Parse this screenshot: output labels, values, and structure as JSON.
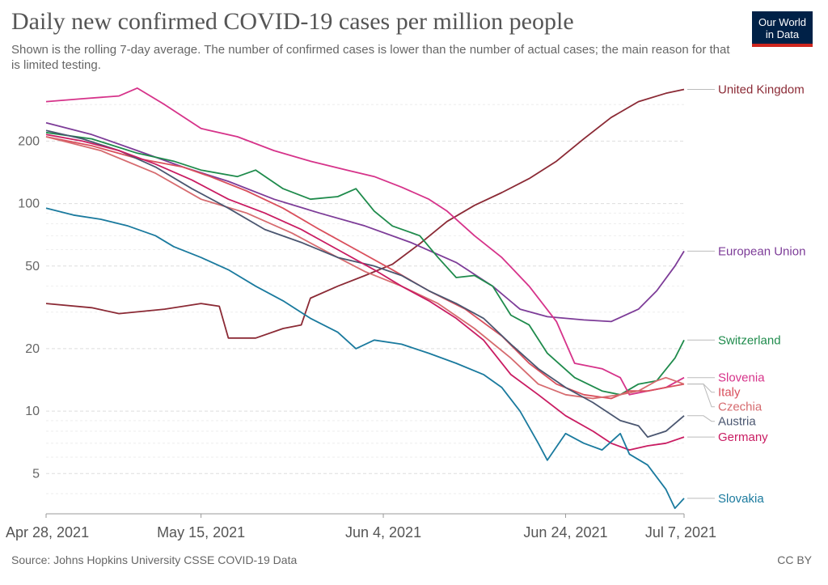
{
  "header": {
    "title": "Daily new confirmed COVID-19 cases per million people",
    "subtitle": "Shown is the rolling 7-day average. The number of confirmed cases is lower than the number of actual cases; the main reason for that is limited testing.",
    "logo_line1": "Our World",
    "logo_line2": "in Data"
  },
  "footer": {
    "source": "Source: Johns Hopkins University CSSE COVID-19 Data",
    "license": "CC BY"
  },
  "chart_data": {
    "type": "line",
    "title": "Daily new confirmed COVID-19 cases per million people",
    "yscale": "log",
    "ylim": [
      3.2,
      390
    ],
    "yticks": [
      5,
      10,
      20,
      50,
      100,
      200
    ],
    "ytick_labels": [
      "5",
      "10",
      "20",
      "50",
      "100",
      "200"
    ],
    "xlim": [
      "2021-04-28",
      "2021-07-07"
    ],
    "xticks": [
      "2021-04-28",
      "2021-05-15",
      "2021-06-04",
      "2021-06-24",
      "2021-07-07"
    ],
    "xtick_labels": [
      "Apr 28, 2021",
      "May 15, 2021",
      "Jun 4, 2021",
      "Jun 24, 2021",
      "Jul 7, 2021"
    ],
    "grid": true,
    "legend": "right, labels at line ends",
    "series": [
      {
        "name": "United Kingdom",
        "color": "#8b2a35",
        "points": [
          [
            "2021-04-28",
            33
          ],
          [
            "2021-05-03",
            31.5
          ],
          [
            "2021-05-06",
            29.5
          ],
          [
            "2021-05-11",
            31
          ],
          [
            "2021-05-15",
            33
          ],
          [
            "2021-05-17",
            32
          ],
          [
            "2021-05-18",
            22.5
          ],
          [
            "2021-05-21",
            22.5
          ],
          [
            "2021-05-24",
            25
          ],
          [
            "2021-05-26",
            26
          ],
          [
            "2021-05-27",
            35
          ],
          [
            "2021-05-30",
            40
          ],
          [
            "2021-06-02",
            45
          ],
          [
            "2021-06-05",
            51
          ],
          [
            "2021-06-08",
            64
          ],
          [
            "2021-06-11",
            82
          ],
          [
            "2021-06-14",
            98
          ],
          [
            "2021-06-17",
            113
          ],
          [
            "2021-06-20",
            132
          ],
          [
            "2021-06-23",
            160
          ],
          [
            "2021-06-26",
            205
          ],
          [
            "2021-06-29",
            260
          ],
          [
            "2021-07-02",
            310
          ],
          [
            "2021-07-05",
            340
          ],
          [
            "2021-07-07",
            355
          ]
        ]
      },
      {
        "name": "European Union",
        "color": "#7d3c98",
        "points": [
          [
            "2021-04-28",
            245
          ],
          [
            "2021-05-03",
            215
          ],
          [
            "2021-05-08",
            180
          ],
          [
            "2021-05-13",
            150
          ],
          [
            "2021-05-18",
            128
          ],
          [
            "2021-05-23",
            105
          ],
          [
            "2021-05-28",
            90
          ],
          [
            "2021-06-02",
            78
          ],
          [
            "2021-06-07",
            65
          ],
          [
            "2021-06-12",
            52
          ],
          [
            "2021-06-16",
            40
          ],
          [
            "2021-06-19",
            31
          ],
          [
            "2021-06-22",
            28.5
          ],
          [
            "2021-06-26",
            27.5
          ],
          [
            "2021-06-29",
            27
          ],
          [
            "2021-07-02",
            31
          ],
          [
            "2021-07-04",
            38
          ],
          [
            "2021-07-06",
            50
          ],
          [
            "2021-07-07",
            59
          ]
        ]
      },
      {
        "name": "Switzerland",
        "color": "#1f8b4c",
        "points": [
          [
            "2021-04-28",
            220
          ],
          [
            "2021-05-03",
            205
          ],
          [
            "2021-05-08",
            175
          ],
          [
            "2021-05-12",
            160
          ],
          [
            "2021-05-15",
            145
          ],
          [
            "2021-05-19",
            135
          ],
          [
            "2021-05-21",
            145
          ],
          [
            "2021-05-24",
            118
          ],
          [
            "2021-05-27",
            105
          ],
          [
            "2021-05-30",
            108
          ],
          [
            "2021-06-01",
            118
          ],
          [
            "2021-06-03",
            92
          ],
          [
            "2021-06-05",
            78
          ],
          [
            "2021-06-08",
            70
          ],
          [
            "2021-06-10",
            55
          ],
          [
            "2021-06-12",
            44
          ],
          [
            "2021-06-14",
            45
          ],
          [
            "2021-06-16",
            40
          ],
          [
            "2021-06-18",
            29
          ],
          [
            "2021-06-20",
            26
          ],
          [
            "2021-06-22",
            19
          ],
          [
            "2021-06-25",
            14.5
          ],
          [
            "2021-06-28",
            12.5
          ],
          [
            "2021-06-30",
            12
          ],
          [
            "2021-07-02",
            13.5
          ],
          [
            "2021-07-04",
            14
          ],
          [
            "2021-07-06",
            18
          ],
          [
            "2021-07-07",
            22
          ]
        ]
      },
      {
        "name": "Slovenia",
        "color": "#d6338a",
        "points": [
          [
            "2021-04-28",
            310
          ],
          [
            "2021-05-02",
            320
          ],
          [
            "2021-05-06",
            330
          ],
          [
            "2021-05-08",
            360
          ],
          [
            "2021-05-11",
            300
          ],
          [
            "2021-05-15",
            230
          ],
          [
            "2021-05-19",
            210
          ],
          [
            "2021-05-23",
            180
          ],
          [
            "2021-05-27",
            160
          ],
          [
            "2021-05-31",
            145
          ],
          [
            "2021-06-03",
            135
          ],
          [
            "2021-06-06",
            120
          ],
          [
            "2021-06-09",
            105
          ],
          [
            "2021-06-11",
            92
          ],
          [
            "2021-06-14",
            70
          ],
          [
            "2021-06-17",
            55
          ],
          [
            "2021-06-20",
            40
          ],
          [
            "2021-06-23",
            27
          ],
          [
            "2021-06-25",
            17
          ],
          [
            "2021-06-28",
            16
          ],
          [
            "2021-06-30",
            14.5
          ],
          [
            "2021-07-01",
            12
          ],
          [
            "2021-07-03",
            12.5
          ],
          [
            "2021-07-05",
            13
          ],
          [
            "2021-07-07",
            14.5
          ]
        ]
      },
      {
        "name": "Italy",
        "color": "#d94f5c",
        "points": [
          [
            "2021-04-28",
            210
          ],
          [
            "2021-05-03",
            190
          ],
          [
            "2021-05-08",
            165
          ],
          [
            "2021-05-13",
            150
          ],
          [
            "2021-05-16",
            135
          ],
          [
            "2021-05-20",
            115
          ],
          [
            "2021-05-24",
            95
          ],
          [
            "2021-05-28",
            75
          ],
          [
            "2021-06-01",
            60
          ],
          [
            "2021-06-05",
            48
          ],
          [
            "2021-06-09",
            38
          ],
          [
            "2021-06-13",
            31
          ],
          [
            "2021-06-17",
            23
          ],
          [
            "2021-06-20",
            17
          ],
          [
            "2021-06-23",
            13.5
          ],
          [
            "2021-06-26",
            12
          ],
          [
            "2021-06-29",
            11.5
          ],
          [
            "2021-07-01",
            12.5
          ],
          [
            "2021-07-03",
            12.5
          ],
          [
            "2021-07-05",
            13
          ],
          [
            "2021-07-07",
            13.5
          ]
        ]
      },
      {
        "name": "Czechia",
        "color": "#d66b6f",
        "points": [
          [
            "2021-04-28",
            210
          ],
          [
            "2021-05-04",
            180
          ],
          [
            "2021-05-10",
            140
          ],
          [
            "2021-05-15",
            105
          ],
          [
            "2021-05-20",
            90
          ],
          [
            "2021-05-25",
            72
          ],
          [
            "2021-05-29",
            58
          ],
          [
            "2021-06-02",
            47
          ],
          [
            "2021-06-06",
            40
          ],
          [
            "2021-06-10",
            33
          ],
          [
            "2021-06-14",
            25
          ],
          [
            "2021-06-18",
            18
          ],
          [
            "2021-06-21",
            13.5
          ],
          [
            "2021-06-24",
            12
          ],
          [
            "2021-06-27",
            11.5
          ],
          [
            "2021-06-30",
            12
          ],
          [
            "2021-07-02",
            12.5
          ],
          [
            "2021-07-04",
            14
          ],
          [
            "2021-07-05",
            14.5
          ],
          [
            "2021-07-07",
            13.5
          ]
        ]
      },
      {
        "name": "Austria",
        "color": "#4a5670",
        "points": [
          [
            "2021-04-28",
            225
          ],
          [
            "2021-05-02",
            205
          ],
          [
            "2021-05-06",
            180
          ],
          [
            "2021-05-10",
            150
          ],
          [
            "2021-05-14",
            118
          ],
          [
            "2021-05-18",
            95
          ],
          [
            "2021-05-22",
            75
          ],
          [
            "2021-05-26",
            65
          ],
          [
            "2021-05-30",
            55
          ],
          [
            "2021-06-03",
            50
          ],
          [
            "2021-06-06",
            45
          ],
          [
            "2021-06-09",
            38
          ],
          [
            "2021-06-12",
            33
          ],
          [
            "2021-06-15",
            28
          ],
          [
            "2021-06-18",
            21
          ],
          [
            "2021-06-21",
            16
          ],
          [
            "2021-06-24",
            13
          ],
          [
            "2021-06-27",
            11
          ],
          [
            "2021-06-30",
            9
          ],
          [
            "2021-07-02",
            8.5
          ],
          [
            "2021-07-03",
            7.5
          ],
          [
            "2021-07-05",
            8
          ],
          [
            "2021-07-07",
            9.5
          ]
        ]
      },
      {
        "name": "Germany",
        "color": "#c91c62",
        "points": [
          [
            "2021-04-28",
            215
          ],
          [
            "2021-05-02",
            200
          ],
          [
            "2021-05-06",
            180
          ],
          [
            "2021-05-10",
            155
          ],
          [
            "2021-05-14",
            130
          ],
          [
            "2021-05-18",
            105
          ],
          [
            "2021-05-22",
            90
          ],
          [
            "2021-05-26",
            75
          ],
          [
            "2021-05-30",
            60
          ],
          [
            "2021-06-03",
            48
          ],
          [
            "2021-06-06",
            40
          ],
          [
            "2021-06-09",
            34
          ],
          [
            "2021-06-12",
            28
          ],
          [
            "2021-06-15",
            22
          ],
          [
            "2021-06-18",
            15
          ],
          [
            "2021-06-21",
            12
          ],
          [
            "2021-06-24",
            9.5
          ],
          [
            "2021-06-27",
            8
          ],
          [
            "2021-06-29",
            7
          ],
          [
            "2021-07-01",
            6.5
          ],
          [
            "2021-07-03",
            6.8
          ],
          [
            "2021-07-05",
            7
          ],
          [
            "2021-07-07",
            7.5
          ]
        ]
      },
      {
        "name": "Slovakia",
        "color": "#1a7a9e",
        "points": [
          [
            "2021-04-28",
            95
          ],
          [
            "2021-05-01",
            88
          ],
          [
            "2021-05-04",
            84
          ],
          [
            "2021-05-07",
            78
          ],
          [
            "2021-05-10",
            70
          ],
          [
            "2021-05-12",
            62
          ],
          [
            "2021-05-15",
            55
          ],
          [
            "2021-05-18",
            48
          ],
          [
            "2021-05-21",
            40
          ],
          [
            "2021-05-24",
            34
          ],
          [
            "2021-05-27",
            28
          ],
          [
            "2021-05-30",
            24
          ],
          [
            "2021-06-01",
            20
          ],
          [
            "2021-06-03",
            22
          ],
          [
            "2021-06-06",
            21
          ],
          [
            "2021-06-09",
            19
          ],
          [
            "2021-06-12",
            17
          ],
          [
            "2021-06-15",
            15
          ],
          [
            "2021-06-17",
            13
          ],
          [
            "2021-06-19",
            10
          ],
          [
            "2021-06-21",
            7
          ],
          [
            "2021-06-22",
            5.8
          ],
          [
            "2021-06-24",
            7.8
          ],
          [
            "2021-06-26",
            7
          ],
          [
            "2021-06-28",
            6.5
          ],
          [
            "2021-06-30",
            7.8
          ],
          [
            "2021-07-01",
            6.2
          ],
          [
            "2021-07-03",
            5.5
          ],
          [
            "2021-07-05",
            4.2
          ],
          [
            "2021-07-06",
            3.4
          ],
          [
            "2021-07-07",
            3.8
          ]
        ]
      }
    ]
  }
}
